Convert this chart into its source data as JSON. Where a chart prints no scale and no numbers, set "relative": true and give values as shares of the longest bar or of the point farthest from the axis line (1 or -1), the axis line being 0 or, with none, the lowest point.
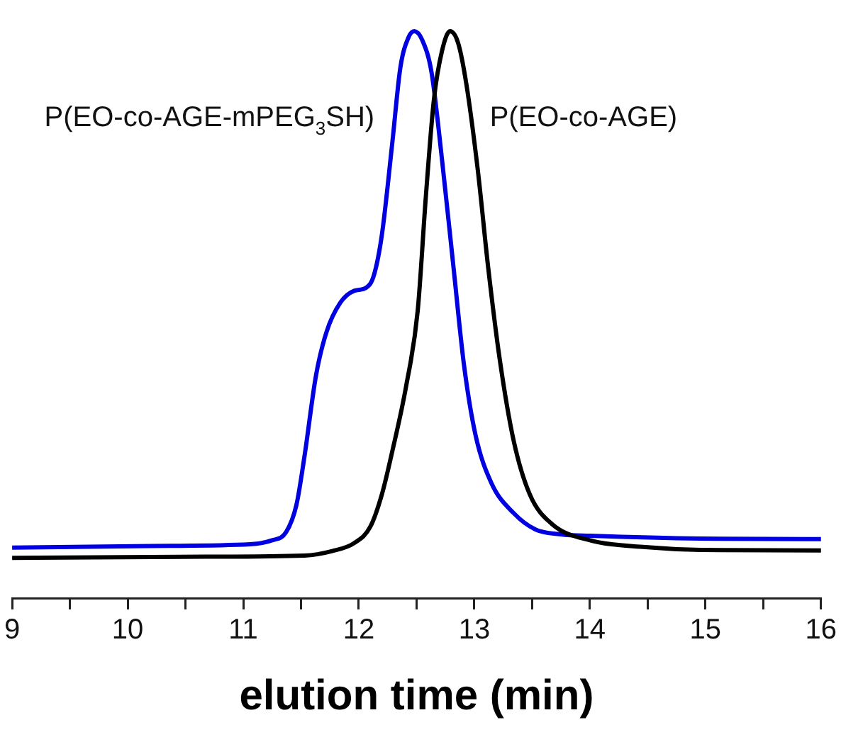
{
  "chart_data": {
    "type": "line",
    "relative": true,
    "xlabel": "elution time (min)",
    "xlim": [
      9,
      16
    ],
    "xticks": [
      9,
      {
        "value": 9.5,
        "label": null
      },
      10,
      {
        "value": 10.5,
        "label": null
      },
      11,
      {
        "value": 11.5,
        "label": null
      },
      12,
      {
        "value": 12.5,
        "label": null
      },
      13,
      {
        "value": 13.5,
        "label": null
      },
      14,
      {
        "value": 14.5,
        "label": null
      },
      15,
      {
        "value": 15.5,
        "label": null
      },
      16
    ],
    "tick_labels": "x",
    "grid": false,
    "legend": false,
    "marker": "none",
    "line_style": "solid",
    "series": [
      {
        "name": "P(EO-co-AGE-mPEG$_{3}$SH)",
        "color": "#0000e0",
        "x": [
          9,
          10.2,
          11.06,
          11.25,
          11.37,
          11.46,
          11.53,
          11.63,
          11.72,
          11.84,
          11.96,
          12.06,
          12.13,
          12.2,
          12.29,
          12.36,
          12.43,
          12.48,
          12.55,
          12.63,
          12.72,
          12.82,
          12.91,
          13.01,
          13.15,
          13.34,
          13.53,
          13.77,
          14.0,
          14.96,
          16
        ],
        "values": [
          0.089,
          0.092,
          0.095,
          0.102,
          0.116,
          0.164,
          0.25,
          0.393,
          0.469,
          0.521,
          0.542,
          0.547,
          0.569,
          0.641,
          0.803,
          0.936,
          0.989,
          1,
          0.984,
          0.927,
          0.774,
          0.583,
          0.412,
          0.288,
          0.202,
          0.15,
          0.121,
          0.112,
          0.11,
          0.105,
          0.104
        ]
      },
      {
        "name": "P(EO-co-AGE)",
        "color": "#000000",
        "x": [
          9,
          10.68,
          11.53,
          11.77,
          11.96,
          12.1,
          12.2,
          12.29,
          12.41,
          12.51,
          12.58,
          12.65,
          12.72,
          12.79,
          12.86,
          12.93,
          13.03,
          13.12,
          13.22,
          13.34,
          13.48,
          13.67,
          14.0,
          14.48,
          14.96,
          16
        ],
        "values": [
          0.071,
          0.073,
          0.075,
          0.083,
          0.097,
          0.126,
          0.183,
          0.259,
          0.374,
          0.507,
          0.707,
          0.879,
          0.965,
          1,
          0.979,
          0.908,
          0.755,
          0.583,
          0.421,
          0.278,
          0.183,
          0.131,
          0.102,
          0.09,
          0.085,
          0.084
        ]
      }
    ]
  }
}
